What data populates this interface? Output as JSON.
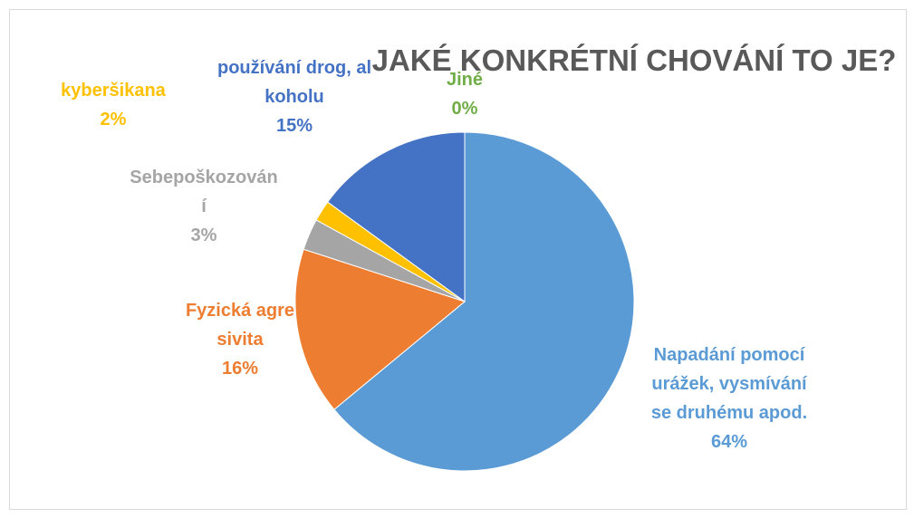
{
  "chart_data": {
    "type": "pie",
    "title": "JAKÉ KONKRÉTNÍ CHOVÁNÍ TO JE?",
    "categories": [
      "Napadání pomocí urážek, vysmívání se druhému apod.",
      "Fyzická agresivita",
      "Sebepoškozování",
      "kyberšikana",
      "používání drog, alkoholu",
      "Jiné"
    ],
    "values": [
      64,
      16,
      3,
      2,
      15,
      0
    ],
    "value_labels": [
      "64%",
      "16%",
      "3%",
      "2%",
      "15%",
      "0%"
    ],
    "colors": [
      "#5b9bd5",
      "#ed7d31",
      "#a5a5a5",
      "#ffc000",
      "#4472c4",
      "#70ad47"
    ]
  }
}
